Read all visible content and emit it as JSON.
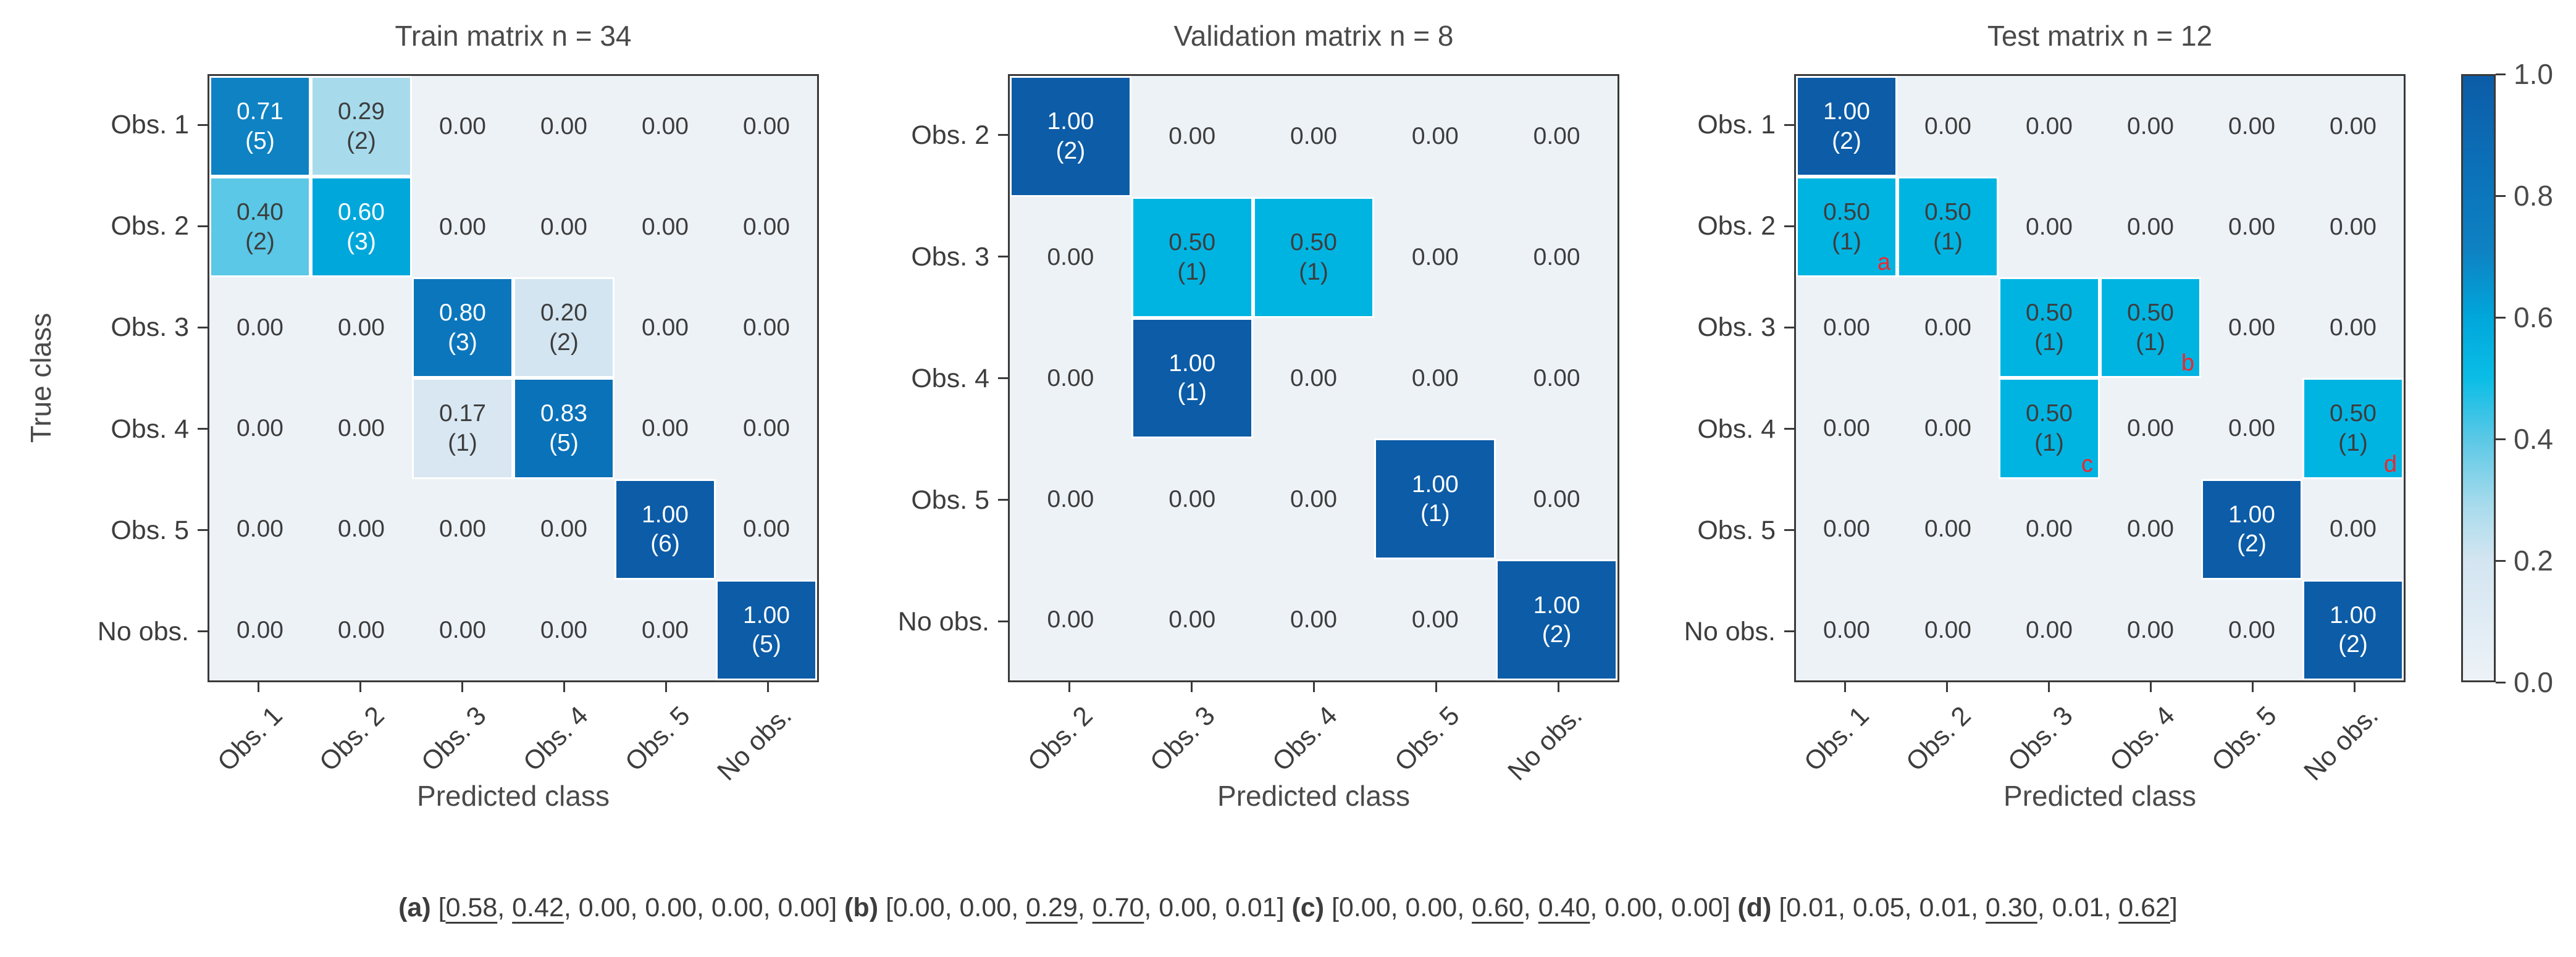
{
  "style": {
    "value_colors": {
      "0.00": "#edf2f7",
      "0.17": "#d8e7f2",
      "0.20": "#d3e5f1",
      "0.29": "#a7dbec",
      "0.40": "#5ac8e6",
      "0.50": "#00b4e2",
      "0.60": "#00a7db",
      "0.71": "#0e82c3",
      "0.80": "#0b76bc",
      "0.83": "#0a72b9",
      "1.00": "#0c5ca7"
    },
    "dark_text_color": "#3d3d3d",
    "light_text_color": "#ffffff",
    "annotation_color": "#f1262b",
    "axis_color": "#3a3a3a"
  },
  "colorbar": {
    "ticks": [
      "1.0",
      "0.8",
      "0.6",
      "0.4",
      "0.2",
      "0.0"
    ]
  },
  "caption": {
    "segments": [
      {
        "t": "(a) ",
        "b": true
      },
      {
        "t": "["
      },
      {
        "t": "0.58",
        "u": true
      },
      {
        "t": ", "
      },
      {
        "t": "0.42",
        "u": true
      },
      {
        "t": ", 0.00, 0.00, 0.00, 0.00] "
      },
      {
        "t": "(b) ",
        "b": true
      },
      {
        "t": "[0.00, 0.00, "
      },
      {
        "t": "0.29",
        "u": true
      },
      {
        "t": ", "
      },
      {
        "t": "0.70",
        "u": true
      },
      {
        "t": ", 0.00, 0.01] "
      },
      {
        "t": "(c) ",
        "b": true
      },
      {
        "t": "[0.00, 0.00, "
      },
      {
        "t": "0.60",
        "u": true
      },
      {
        "t": ", "
      },
      {
        "t": "0.40",
        "u": true
      },
      {
        "t": ", 0.00, 0.00] "
      },
      {
        "t": "(d) ",
        "b": true
      },
      {
        "t": "[0.01, 0.05, 0.01, "
      },
      {
        "t": "0.30",
        "u": true
      },
      {
        "t": ", 0.01, "
      },
      {
        "t": "0.62",
        "u": true
      },
      {
        "t": "]"
      }
    ]
  },
  "chart_data": [
    {
      "type": "heatmap",
      "name": "train",
      "title": "Train matrix n = 34",
      "xlabel": "Predicted class",
      "ylabel": "True class",
      "x_categories": [
        "Obs. 1",
        "Obs. 2",
        "Obs. 3",
        "Obs. 4",
        "Obs. 5",
        "No obs."
      ],
      "y_categories": [
        "Obs. 1",
        "Obs. 2",
        "Obs. 3",
        "Obs. 4",
        "Obs. 5",
        "No obs."
      ],
      "values": [
        [
          0.71,
          0.29,
          0.0,
          0.0,
          0.0,
          0.0
        ],
        [
          0.4,
          0.6,
          0.0,
          0.0,
          0.0,
          0.0
        ],
        [
          0.0,
          0.0,
          0.8,
          0.2,
          0.0,
          0.0
        ],
        [
          0.0,
          0.0,
          0.17,
          0.83,
          0.0,
          0.0
        ],
        [
          0.0,
          0.0,
          0.0,
          0.0,
          1.0,
          0.0
        ],
        [
          0.0,
          0.0,
          0.0,
          0.0,
          0.0,
          1.0
        ]
      ],
      "counts": [
        [
          5,
          2,
          0,
          0,
          0,
          0
        ],
        [
          2,
          3,
          0,
          0,
          0,
          0
        ],
        [
          0,
          0,
          3,
          2,
          0,
          0
        ],
        [
          0,
          0,
          1,
          5,
          0,
          0
        ],
        [
          0,
          0,
          0,
          0,
          6,
          0
        ],
        [
          0,
          0,
          0,
          0,
          0,
          5
        ]
      ],
      "annotations": [],
      "colorbar_range": [
        0.0,
        1.0
      ]
    },
    {
      "type": "heatmap",
      "name": "validation",
      "title": "Validation matrix n = 8",
      "xlabel": "Predicted class",
      "ylabel": "True class",
      "x_categories": [
        "Obs. 2",
        "Obs. 3",
        "Obs. 4",
        "Obs. 5",
        "No obs."
      ],
      "y_categories": [
        "Obs. 2",
        "Obs. 3",
        "Obs. 4",
        "Obs. 5",
        "No obs."
      ],
      "values": [
        [
          1.0,
          0.0,
          0.0,
          0.0,
          0.0
        ],
        [
          0.0,
          0.5,
          0.5,
          0.0,
          0.0
        ],
        [
          0.0,
          1.0,
          0.0,
          0.0,
          0.0
        ],
        [
          0.0,
          0.0,
          0.0,
          1.0,
          0.0
        ],
        [
          0.0,
          0.0,
          0.0,
          0.0,
          1.0
        ]
      ],
      "counts": [
        [
          2,
          0,
          0,
          0,
          0
        ],
        [
          0,
          1,
          1,
          0,
          0
        ],
        [
          0,
          1,
          0,
          0,
          0
        ],
        [
          0,
          0,
          0,
          1,
          0
        ],
        [
          0,
          0,
          0,
          0,
          2
        ]
      ],
      "annotations": [],
      "colorbar_range": [
        0.0,
        1.0
      ]
    },
    {
      "type": "heatmap",
      "name": "test",
      "title": "Test matrix n = 12",
      "xlabel": "Predicted class",
      "ylabel": "True class",
      "x_categories": [
        "Obs. 1",
        "Obs. 2",
        "Obs. 3",
        "Obs. 4",
        "Obs. 5",
        "No obs."
      ],
      "y_categories": [
        "Obs. 1",
        "Obs. 2",
        "Obs. 3",
        "Obs. 4",
        "Obs. 5",
        "No obs."
      ],
      "values": [
        [
          1.0,
          0.0,
          0.0,
          0.0,
          0.0,
          0.0
        ],
        [
          0.5,
          0.5,
          0.0,
          0.0,
          0.0,
          0.0
        ],
        [
          0.0,
          0.0,
          0.5,
          0.5,
          0.0,
          0.0
        ],
        [
          0.0,
          0.0,
          0.5,
          0.0,
          0.0,
          0.5
        ],
        [
          0.0,
          0.0,
          0.0,
          0.0,
          1.0,
          0.0
        ],
        [
          0.0,
          0.0,
          0.0,
          0.0,
          0.0,
          1.0
        ]
      ],
      "counts": [
        [
          2,
          0,
          0,
          0,
          0,
          0
        ],
        [
          1,
          1,
          0,
          0,
          0,
          0
        ],
        [
          0,
          0,
          1,
          1,
          0,
          0
        ],
        [
          0,
          0,
          1,
          0,
          0,
          1
        ],
        [
          0,
          0,
          0,
          0,
          2,
          0
        ],
        [
          0,
          0,
          0,
          0,
          0,
          2
        ]
      ],
      "annotations": [
        {
          "label": "a",
          "row": 1,
          "col": 0
        },
        {
          "label": "b",
          "row": 2,
          "col": 3
        },
        {
          "label": "c",
          "row": 3,
          "col": 2
        },
        {
          "label": "d",
          "row": 3,
          "col": 5
        }
      ],
      "colorbar_range": [
        0.0,
        1.0
      ]
    }
  ]
}
